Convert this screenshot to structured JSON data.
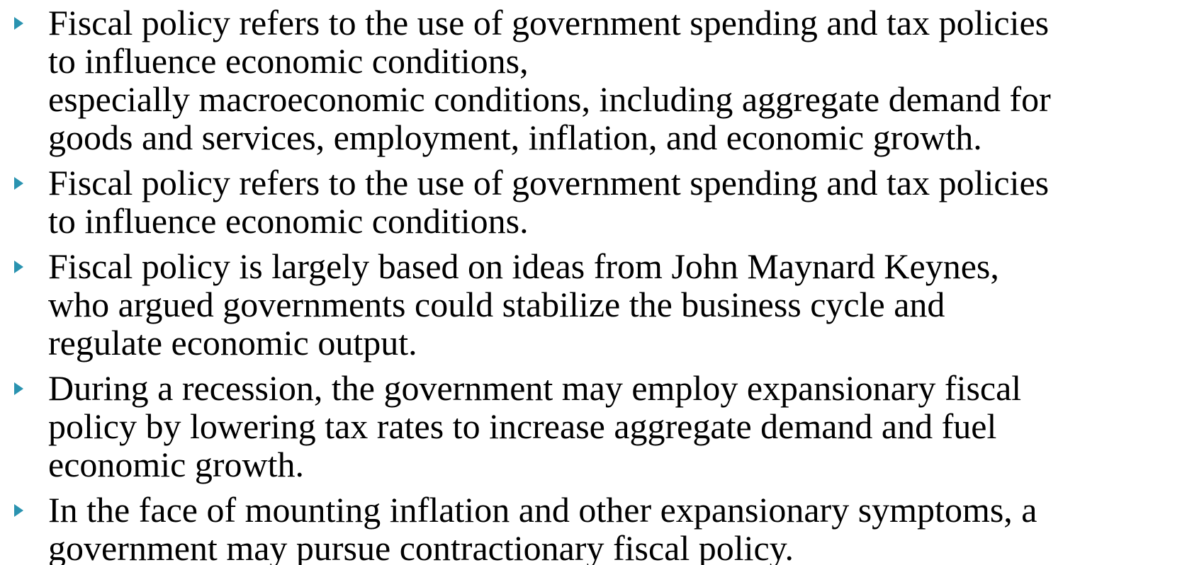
{
  "bullets": [
    {
      "lines": [
        "Fiscal policy refers to the use of government spending and tax policies",
        "to influence economic conditions,",
        "especially macroeconomic conditions, including aggregate demand for",
        "goods and services, employment, inflation, and economic growth."
      ]
    },
    {
      "lines": [
        "Fiscal policy refers to the use of government spending and tax policies",
        "to influence economic conditions."
      ]
    },
    {
      "lines": [
        "Fiscal policy is largely based on ideas from John Maynard Keynes,",
        "who argued governments could stabilize the business cycle and",
        "regulate economic output."
      ]
    },
    {
      "lines": [
        "During a recession, the government may employ expansionary fiscal",
        "policy by lowering tax rates to increase aggregate demand and fuel",
        "economic growth."
      ]
    },
    {
      "lines": [
        "In the face of mounting inflation and other expansionary symptoms, a",
        "government may pursue contractionary fiscal policy."
      ]
    }
  ]
}
